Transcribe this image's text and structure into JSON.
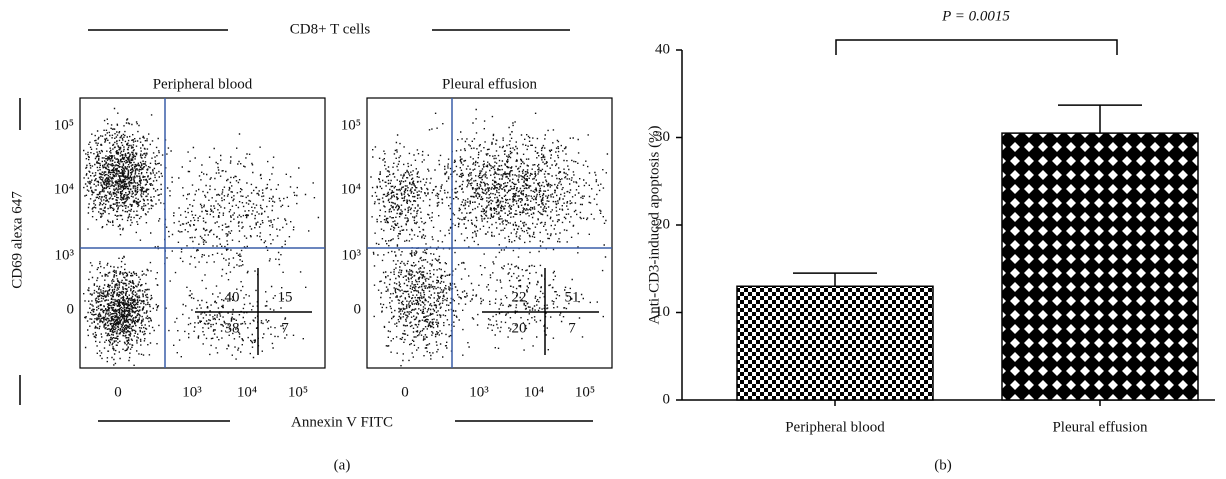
{
  "panel_a": {
    "title": "CD8+ T cells",
    "x_label": "Annexin V FITC",
    "y_label": "CD69 alexa 647",
    "caption": "(a)",
    "xticks": [
      "0",
      "10³",
      "10⁴",
      "10⁵"
    ],
    "yticks": [
      "10⁵",
      "10⁴",
      "10³",
      "0"
    ],
    "plots": [
      {
        "title": "Peripheral blood",
        "quadrants": [
          40,
          15,
          38,
          7
        ]
      },
      {
        "title": "Pleural effusion",
        "quadrants": [
          22,
          51,
          20,
          7
        ]
      }
    ]
  },
  "chart_data": {
    "type": "bar",
    "categories": [
      "Peripheral blood",
      "Pleural effusion"
    ],
    "values": [
      13,
      30.5
    ],
    "errors": [
      1.5,
      3.2
    ],
    "y_label": "Anti-CD3-induced apoptosis (%)",
    "ylim": [
      0,
      40
    ],
    "yticks": [
      0,
      10,
      20,
      30,
      40
    ],
    "annotation": "P = 0.0015",
    "caption": "(b)"
  }
}
